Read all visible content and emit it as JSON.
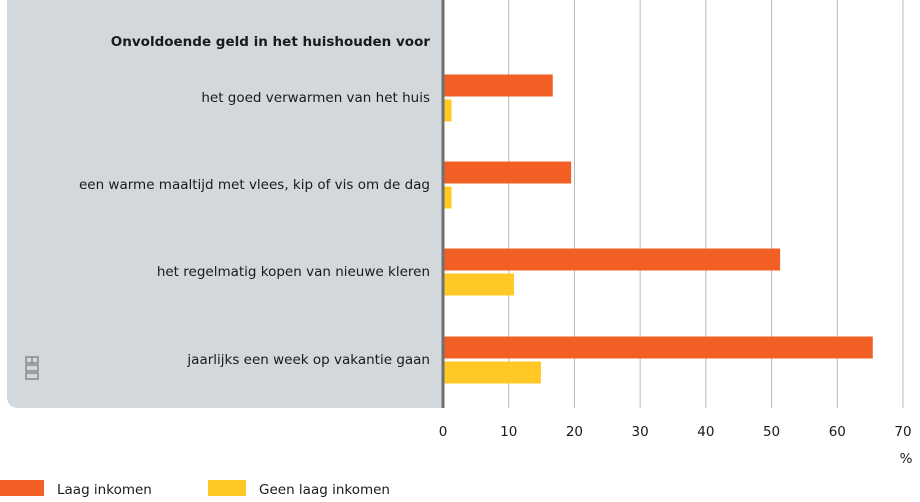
{
  "chart_data": {
    "type": "hbar",
    "y_label": "Onvoldoende geld in het huishouden voor",
    "x_label": "%",
    "categories": [
      "het goed verwarmen van het huis",
      "een warme maaltijd met vlees, kip of vis om de dag",
      "het regelmatig kopen van nieuwe kleren",
      "jaarlijks een week op vakantie gaan"
    ],
    "series": [
      {
        "name": "Laag inkomen",
        "color": "#f15f24",
        "values": [
          16.7,
          19.5,
          51.3,
          65.4
        ]
      },
      {
        "name": "Geen laag inkomen",
        "color": "#ffc825",
        "values": [
          1.3,
          1.3,
          10.8,
          14.9
        ]
      }
    ],
    "xlim": [
      0,
      70
    ],
    "xticks": [
      0,
      10,
      20,
      30,
      40,
      50,
      60,
      70
    ],
    "grid": true,
    "legend": "bottom-left"
  }
}
